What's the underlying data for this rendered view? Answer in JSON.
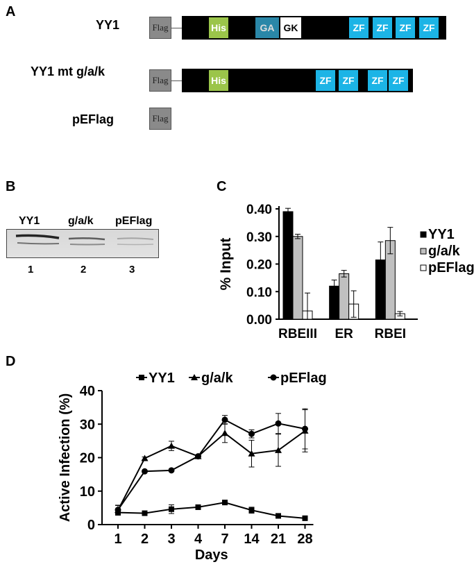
{
  "panelA": {
    "letter": "A",
    "constructs": [
      {
        "name": "YY1",
        "flag": "Flag",
        "domains": [
          "His",
          "GA",
          "GK",
          "ZF",
          "ZF",
          "ZF",
          "ZF"
        ]
      },
      {
        "name": "YY1 mt g/a/k",
        "flag": "Flag",
        "domains": [
          "His",
          "ZF",
          "ZF",
          "ZF",
          "ZF"
        ]
      },
      {
        "name": "pEFlag",
        "flag": "Flag",
        "domains": []
      }
    ],
    "colors": {
      "flag": "#8a8a8a",
      "his": "#9bc54a",
      "ga": "#2a87a8",
      "gk": "#ffffff",
      "zf": "#1cb4e6",
      "body": "#000000"
    }
  },
  "panelB": {
    "letter": "B",
    "lanes": [
      {
        "label": "YY1",
        "number": "1"
      },
      {
        "label": "g/a/k",
        "number": "2"
      },
      {
        "label": "pEFlag",
        "number": "3"
      }
    ]
  },
  "panelC": {
    "letter": "C",
    "chart_data": {
      "type": "bar",
      "ylabel": "% Input",
      "ylim": [
        0,
        0.4
      ],
      "yticks": [
        "0.00",
        "0.10",
        "0.20",
        "0.30",
        "0.40"
      ],
      "categories": [
        "RBEIII",
        "ER",
        "RBEI"
      ],
      "series": [
        {
          "name": "YY1",
          "color": "#000000",
          "values": [
            0.39,
            0.12,
            0.215
          ],
          "errors": [
            0.012,
            0.022,
            0.065
          ]
        },
        {
          "name": "g/a/k",
          "color": "#c0c0c0",
          "values": [
            0.3,
            0.165,
            0.285
          ],
          "errors": [
            0.008,
            0.012,
            0.048
          ]
        },
        {
          "name": "pEFlag",
          "color": "#ffffff",
          "values": [
            0.03,
            0.055,
            0.02
          ],
          "errors": [
            0.065,
            0.048,
            0.008
          ]
        }
      ],
      "legend": "right"
    }
  },
  "panelD": {
    "letter": "D",
    "chart_data": {
      "type": "line",
      "xlabel": "Days",
      "ylabel": "Active Infection (%)",
      "ylim": [
        0,
        40
      ],
      "yticks": [
        "0",
        "10",
        "20",
        "30",
        "40"
      ],
      "categories": [
        "1",
        "2",
        "3",
        "4",
        "7",
        "14",
        "21",
        "28"
      ],
      "series": [
        {
          "name": "YY1",
          "marker": "square",
          "values": [
            3.6,
            3.4,
            4.6,
            5.2,
            6.6,
            4.3,
            2.6,
            1.9
          ],
          "errors": [
            0.5,
            0.4,
            1.3,
            0.7,
            0.5,
            0.9,
            0.4,
            0.3
          ]
        },
        {
          "name": "g/a/k",
          "marker": "triangle",
          "values": [
            4.3,
            19.8,
            23.5,
            20.4,
            27.3,
            21.2,
            22.2,
            28.0
          ],
          "errors": [
            1.5,
            0.4,
            1.4,
            0.3,
            2.8,
            4.0,
            4.8,
            6.3
          ]
        },
        {
          "name": "pEFlag",
          "marker": "circle",
          "values": [
            4.4,
            15.9,
            16.2,
            20.4,
            31.3,
            27.1,
            30.2,
            28.6
          ],
          "errors": [
            1.3,
            0.3,
            0.3,
            0.3,
            1.3,
            1.2,
            3.0,
            6.0
          ]
        }
      ],
      "legend": "top"
    }
  }
}
